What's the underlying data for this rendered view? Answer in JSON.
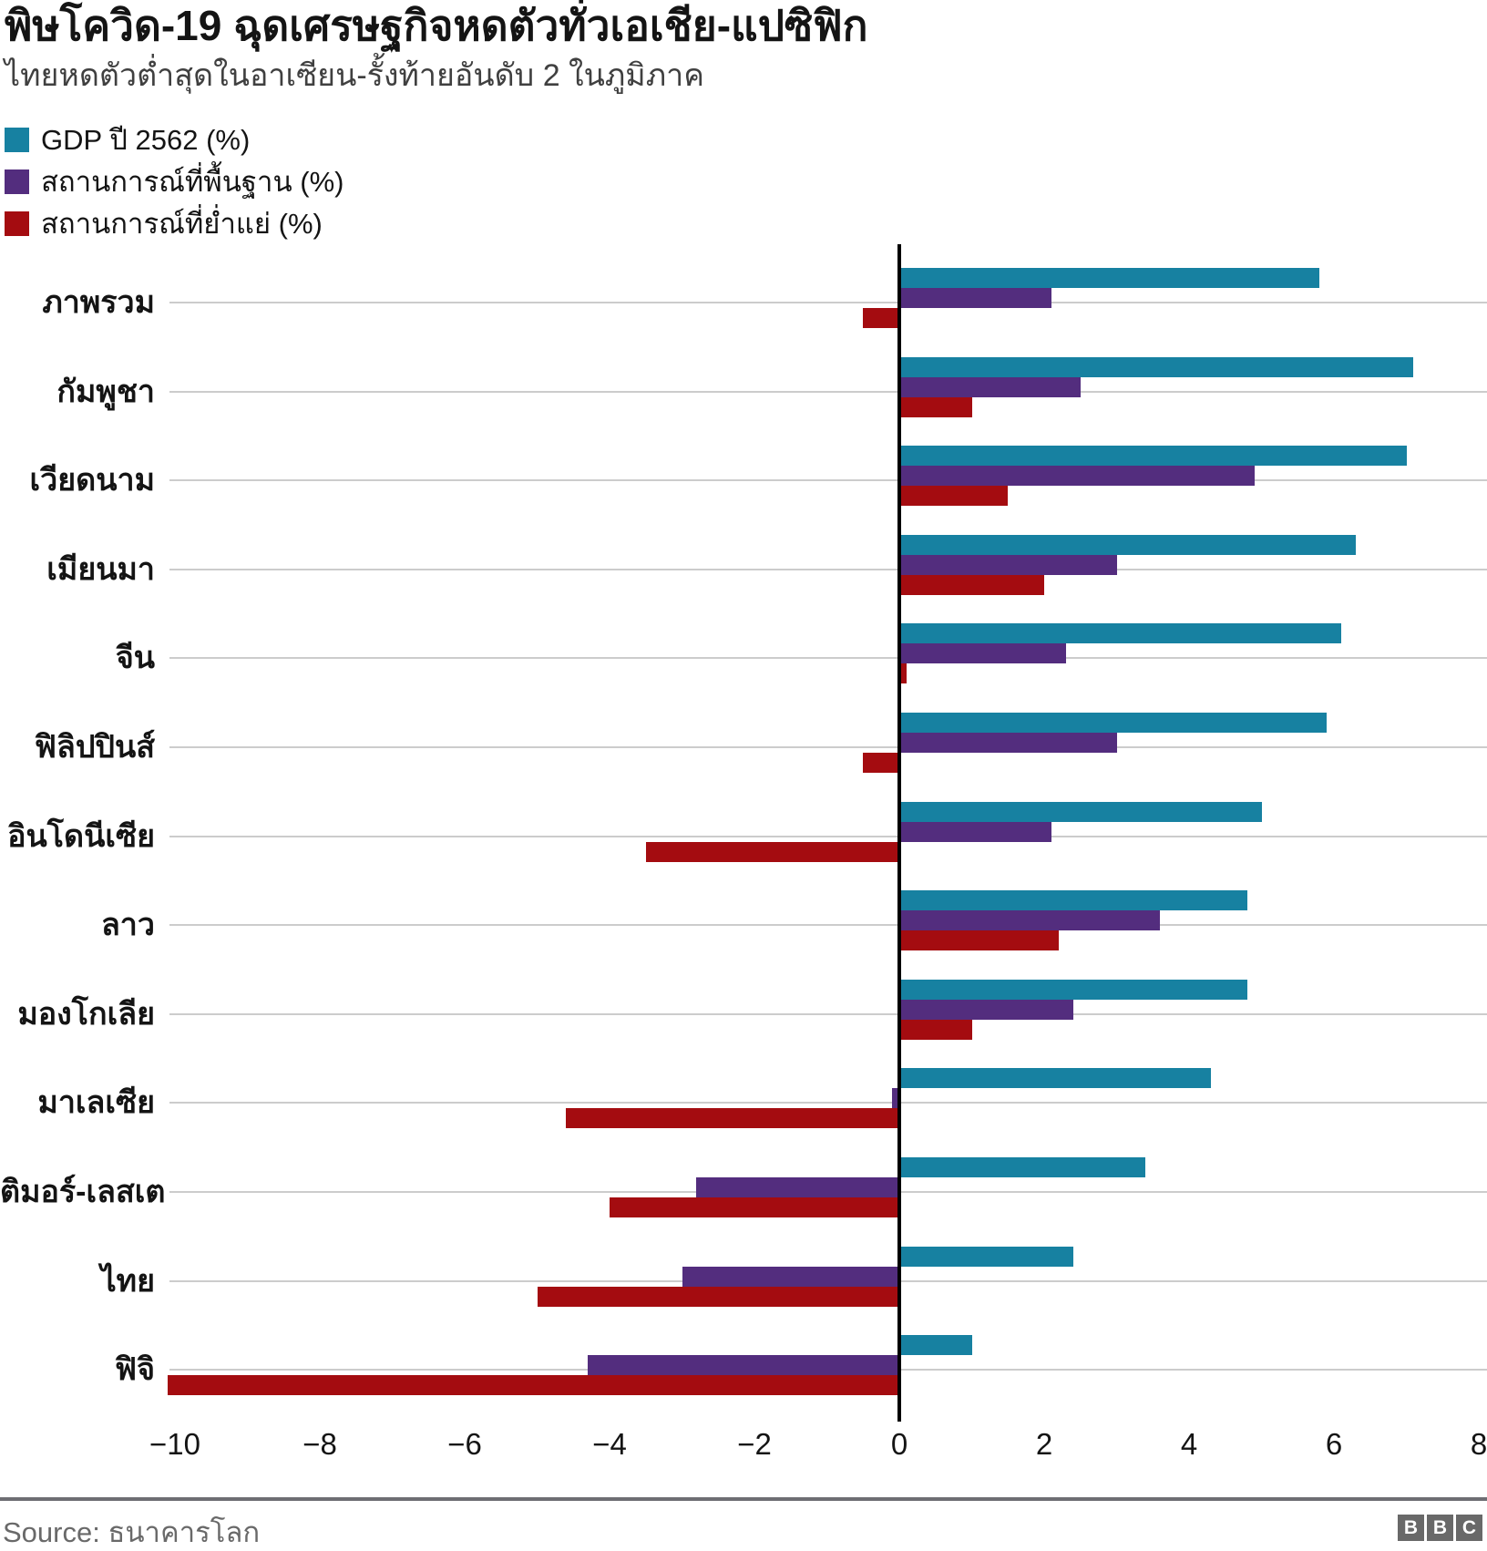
{
  "header": {
    "title": "พิษโควิด-19 ฉุดเศรษฐกิจหดตัวทั่วเอเชีย-แปซิฟิก",
    "subtitle": "ไทยหดตัวต่ำสุดในอาเซียน-รั้งท้ายอันดับ 2 ในภูมิภาค"
  },
  "legend": [
    {
      "label": "GDP ปี 2562 (%)",
      "color": "#1781a1"
    },
    {
      "label": "สถานการณ์ที่พื้นฐาน (%)",
      "color": "#532d7e"
    },
    {
      "label": "สถานการณ์ที่ย่ำแย่ (%)",
      "color": "#a40c10"
    }
  ],
  "chart_data": {
    "type": "bar",
    "orientation": "horizontal",
    "title": "พิษโควิด-19 ฉุดเศรษฐกิจหดตัวทั่วเอเชีย-แปซิฟิก",
    "subtitle": "ไทยหดตัวต่ำสุดในอาเซียน-รั้งท้ายอันดับ 2 ในภูมิภาค",
    "categories": [
      "ภาพรวม",
      "กัมพูชา",
      "เวียดนาม",
      "เมียนมา",
      "จีน",
      "ฟิลิปปินส์",
      "อินโดนีเซีย",
      "ลาว",
      "มองโกเลีย",
      "มาเลเซีย",
      "ติมอร์-เลสเต",
      "ไทย",
      "ฟิจิ"
    ],
    "series": [
      {
        "name": "GDP ปี 2562 (%)",
        "color": "#1781a1",
        "values": [
          5.8,
          7.1,
          7.0,
          6.3,
          6.1,
          5.9,
          5.0,
          4.8,
          4.8,
          4.3,
          3.4,
          2.4,
          1.0
        ]
      },
      {
        "name": "สถานการณ์ที่พื้นฐาน (%)",
        "color": "#532d7e",
        "values": [
          2.1,
          2.5,
          4.9,
          3.0,
          2.3,
          3.0,
          2.1,
          3.6,
          2.4,
          -0.1,
          -2.8,
          -3.0,
          -4.3
        ]
      },
      {
        "name": "สถานการณ์ที่ย่ำแย่ (%)",
        "color": "#a40c10",
        "values": [
          -0.5,
          1.0,
          1.5,
          2.0,
          0.1,
          -0.5,
          -3.5,
          2.2,
          1.0,
          -4.6,
          -4.0,
          -5.0,
          -10.1
        ]
      }
    ],
    "xticks": [
      -10,
      -8,
      -6,
      -4,
      -2,
      0,
      2,
      4,
      6,
      8
    ],
    "xlim": [
      -10.1,
      8.1
    ],
    "xlabel": "",
    "ylabel": "",
    "grid": "category-gridlines-horizontal",
    "legend_position": "top-left"
  },
  "footer": {
    "source": "Source: ธนาคารโลก",
    "logo_letters": [
      "B",
      "B",
      "C"
    ]
  }
}
